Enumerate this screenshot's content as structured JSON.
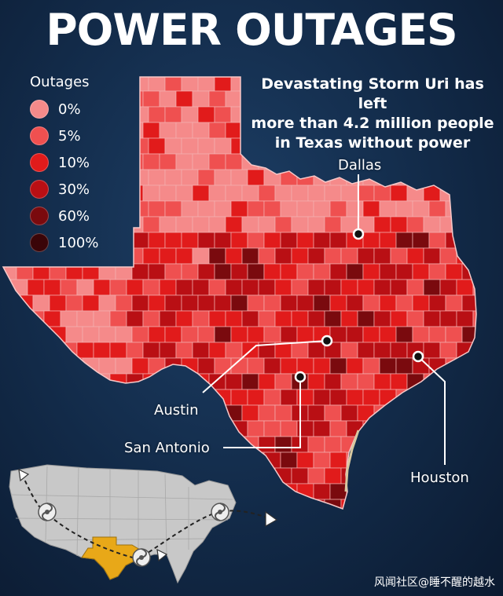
{
  "title": "POWER OUTAGES",
  "subtitle_lines": [
    "Devastating Storm Uri has left",
    "more than 4.2 million people",
    "in Texas without power"
  ],
  "legend": {
    "title": "Outages",
    "items": [
      {
        "label": "0%",
        "color": "#f58a8a"
      },
      {
        "label": "5%",
        "color": "#ef5050"
      },
      {
        "label": "10%",
        "color": "#e11b1b"
      },
      {
        "label": "30%",
        "color": "#b90f14"
      },
      {
        "label": "60%",
        "color": "#7a0a0e"
      },
      {
        "label": "100%",
        "color": "#3a0508"
      }
    ]
  },
  "cities": {
    "dallas": "Dallas",
    "austin": "Austin",
    "san_antonio": "San Antonio",
    "houston": "Houston"
  },
  "watermark": "风闻社区@睡不醒的越水",
  "colors": {
    "background": "#122a48",
    "state_fill": "#c9c9c9",
    "texas_inset": "#e8a818",
    "county_border": "#f3b0b0"
  }
}
